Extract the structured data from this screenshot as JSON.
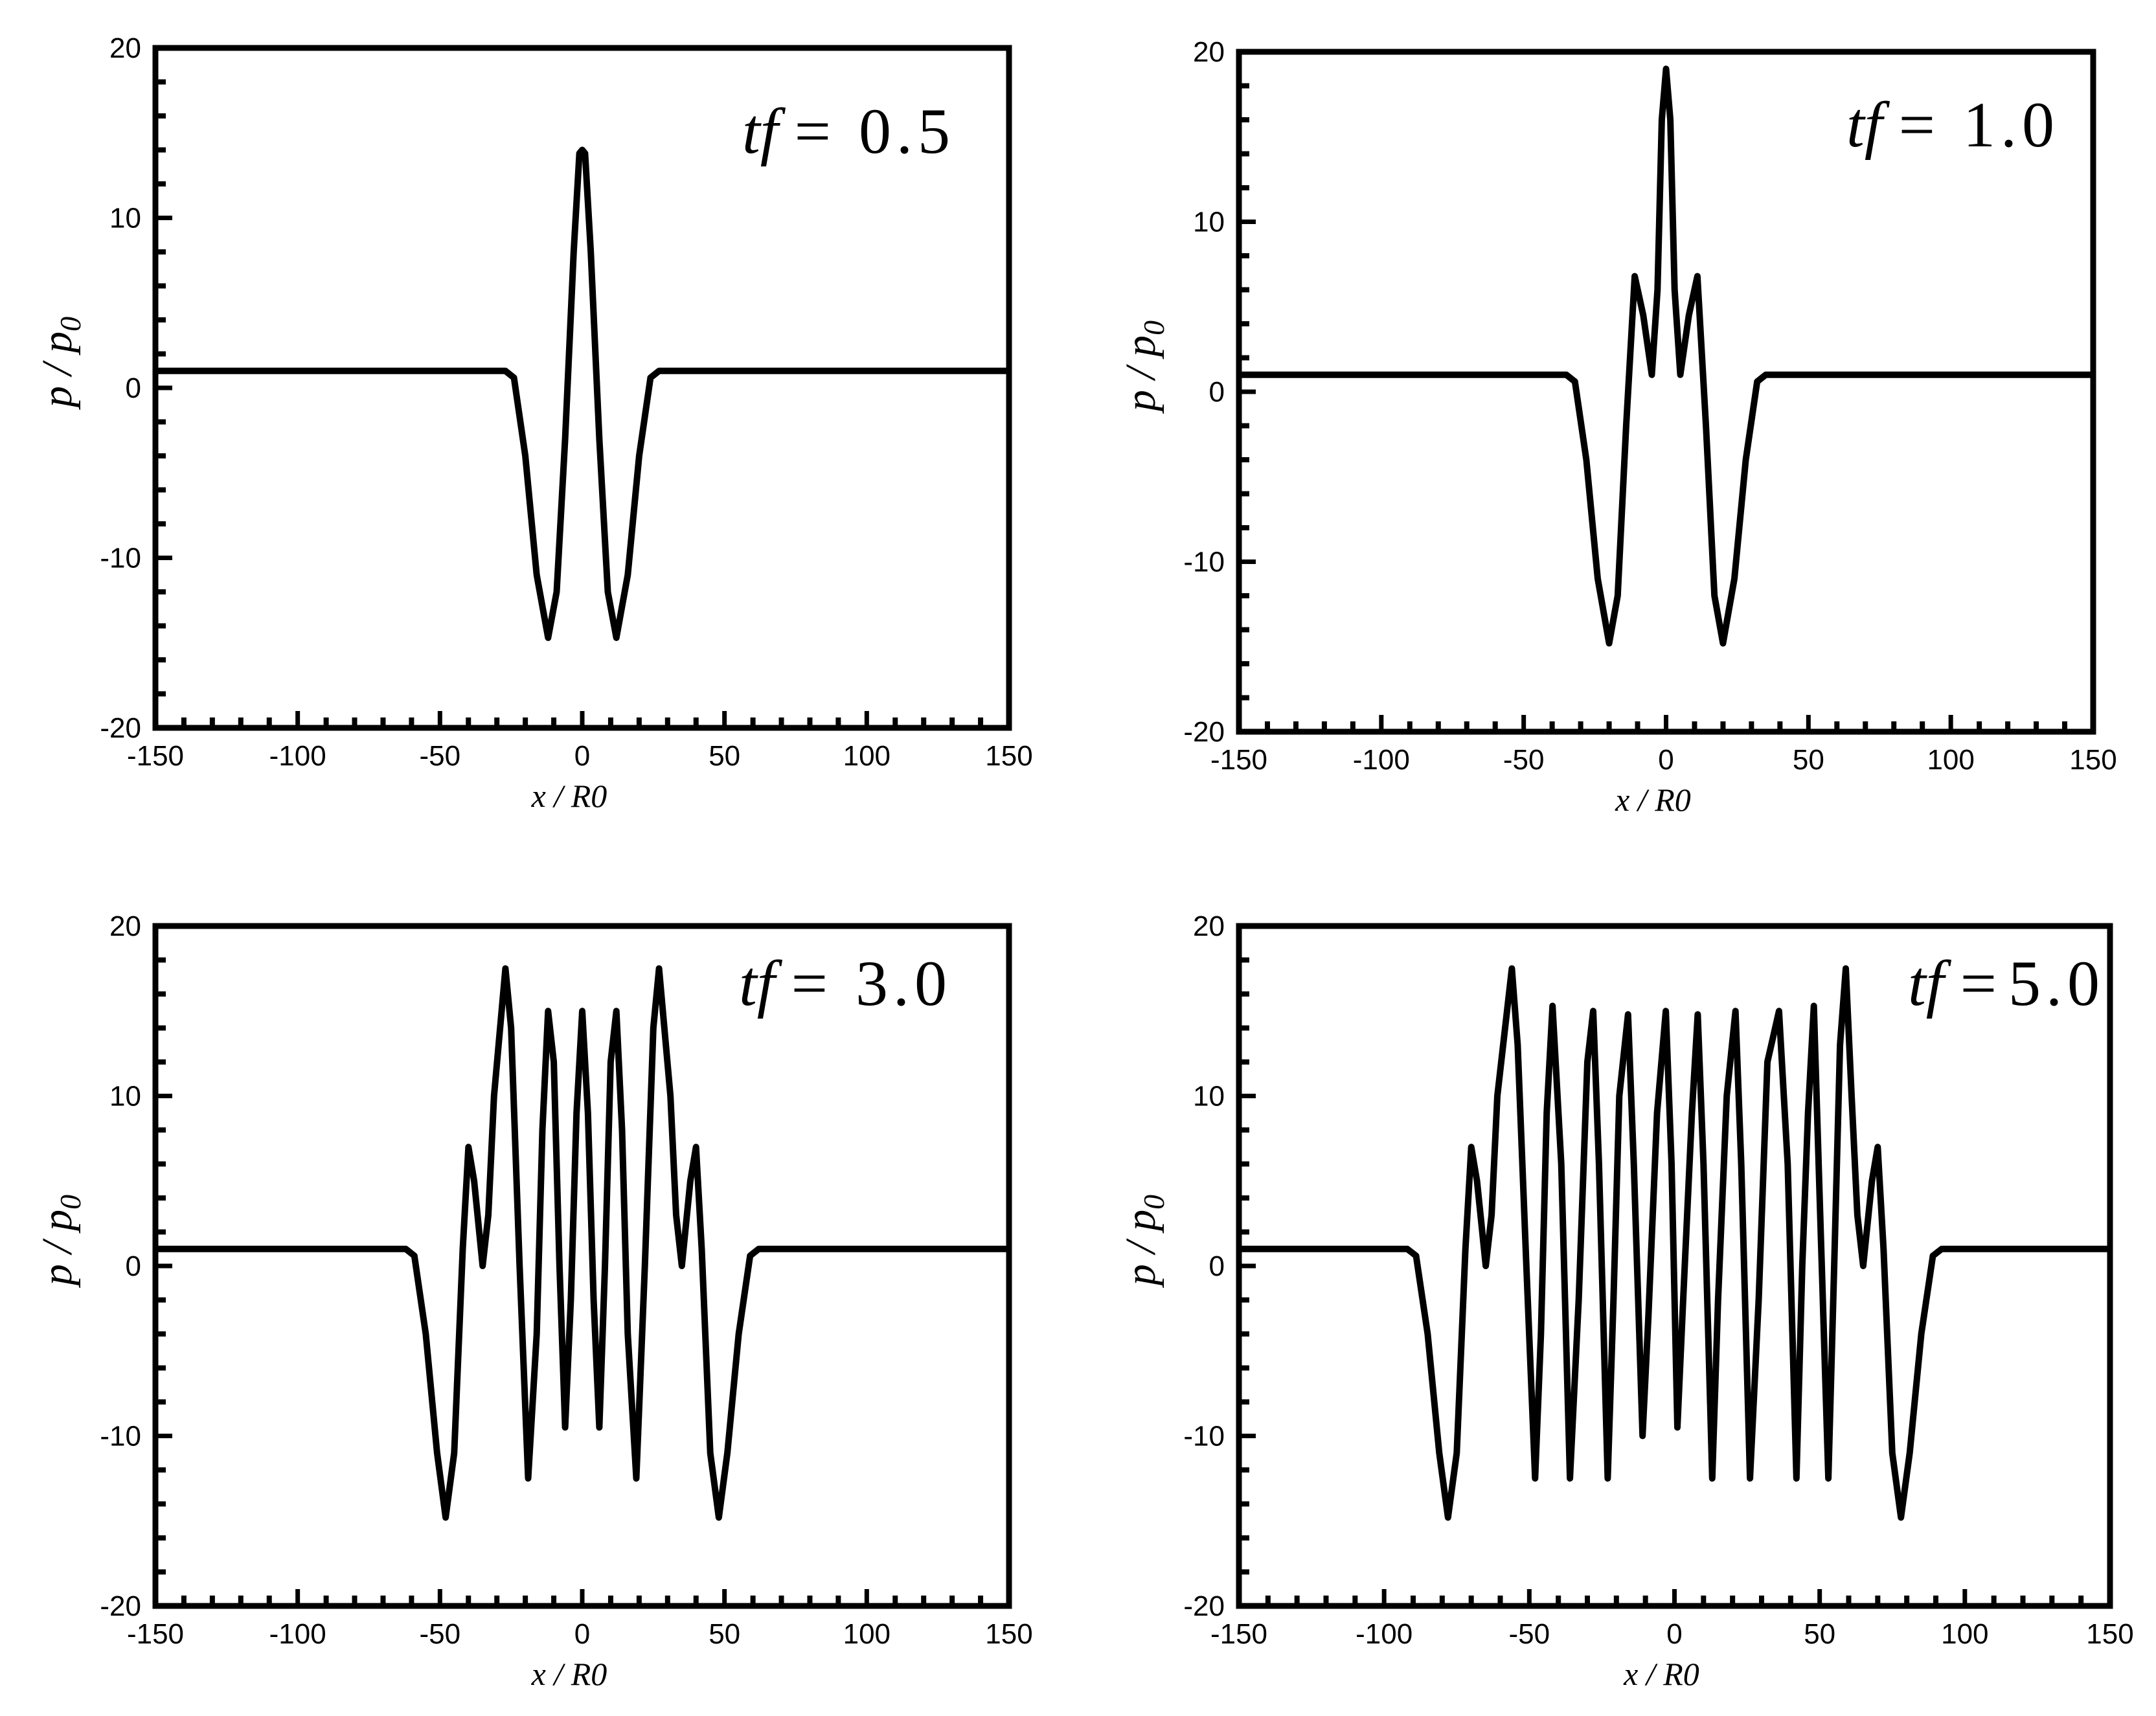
{
  "chart_data": [
    {
      "type": "line",
      "annotation": {
        "prefix": "tf",
        "eq": " = ",
        "value": "0.5"
      },
      "xlabel": "x / R0",
      "ylabel": {
        "main": "p / p",
        "sub": "0"
      },
      "xlim": [
        -150,
        150
      ],
      "ylim": [
        -20,
        20
      ],
      "x_ticks": [
        "-150",
        "-100",
        "-50",
        "0",
        "50",
        "100",
        "150"
      ],
      "y_ticks": [
        "20",
        "10",
        "0",
        "-10",
        "-20"
      ],
      "grid": false,
      "series": [
        {
          "color": "#000000",
          "baseline": 1,
          "points": [
            [
              -150,
              1
            ],
            [
              -27,
              1
            ],
            [
              -24,
              0.6
            ],
            [
              -20,
              -4
            ],
            [
              -16,
              -11
            ],
            [
              -12,
              -14.7
            ],
            [
              -9,
              -12
            ],
            [
              -6,
              -3
            ],
            [
              -3,
              8
            ],
            [
              -1,
              13.8
            ],
            [
              0,
              14
            ],
            [
              1,
              13.8
            ],
            [
              3,
              8
            ],
            [
              6,
              -3
            ],
            [
              9,
              -12
            ],
            [
              12,
              -14.7
            ],
            [
              16,
              -11
            ],
            [
              20,
              -4
            ],
            [
              24,
              0.6
            ],
            [
              27,
              1
            ],
            [
              150,
              1
            ]
          ]
        }
      ]
    },
    {
      "type": "line",
      "annotation": {
        "prefix": "tf",
        "eq": " = ",
        "value": "1.0"
      },
      "xlabel": "x / R0",
      "ylabel": {
        "main": "p / p",
        "sub": "0"
      },
      "xlim": [
        -150,
        150
      ],
      "ylim": [
        -20,
        20
      ],
      "x_ticks": [
        "-150",
        "-100",
        "-50",
        "0",
        "50",
        "100",
        "150"
      ],
      "y_ticks": [
        "20",
        "10",
        "0",
        "-10",
        "-20"
      ],
      "grid": false,
      "series": [
        {
          "color": "#000000",
          "baseline": 1,
          "points": [
            [
              -150,
              1
            ],
            [
              -35,
              1
            ],
            [
              -32,
              0.6
            ],
            [
              -28,
              -4
            ],
            [
              -24,
              -11
            ],
            [
              -20,
              -14.8
            ],
            [
              -17,
              -12
            ],
            [
              -14,
              -2
            ],
            [
              -11,
              6.8
            ],
            [
              -8,
              4.5
            ],
            [
              -5,
              1
            ],
            [
              -3,
              6
            ],
            [
              -1.5,
              16
            ],
            [
              0,
              19
            ],
            [
              1.5,
              16
            ],
            [
              3,
              6
            ],
            [
              5,
              1
            ],
            [
              8,
              4.5
            ],
            [
              11,
              6.8
            ],
            [
              14,
              -2
            ],
            [
              17,
              -12
            ],
            [
              20,
              -14.8
            ],
            [
              24,
              -11
            ],
            [
              28,
              -4
            ],
            [
              32,
              0.6
            ],
            [
              35,
              1
            ],
            [
              150,
              1
            ]
          ]
        }
      ]
    },
    {
      "type": "line",
      "annotation": {
        "prefix": "tf",
        "eq": " = ",
        "value": "3.0"
      },
      "xlabel": "x / R0",
      "ylabel": {
        "main": "p / p",
        "sub": "0"
      },
      "xlim": [
        -150,
        150
      ],
      "ylim": [
        -20,
        20
      ],
      "x_ticks": [
        "-150",
        "-100",
        "-50",
        "0",
        "50",
        "100",
        "150"
      ],
      "y_ticks": [
        "20",
        "10",
        "0",
        "-10",
        "-20"
      ],
      "grid": false,
      "series": [
        {
          "color": "#000000",
          "baseline": 1,
          "points": [
            [
              -150,
              1
            ],
            [
              -62,
              1
            ],
            [
              -59,
              0.6
            ],
            [
              -55,
              -4
            ],
            [
              -51,
              -11
            ],
            [
              -48,
              -14.8
            ],
            [
              -45,
              -11
            ],
            [
              -42,
              1
            ],
            [
              -40,
              7
            ],
            [
              -38,
              5
            ],
            [
              -35,
              0
            ],
            [
              -33,
              3
            ],
            [
              -31,
              10
            ],
            [
              -27,
              17.5
            ],
            [
              -25,
              14
            ],
            [
              -22,
              0
            ],
            [
              -19,
              -12.5
            ],
            [
              -16,
              -4
            ],
            [
              -14,
              8
            ],
            [
              -12,
              15
            ],
            [
              -10,
              12
            ],
            [
              -8,
              0
            ],
            [
              -6,
              -9.5
            ],
            [
              -4,
              -2
            ],
            [
              -2,
              9
            ],
            [
              0,
              15
            ],
            [
              2,
              9
            ],
            [
              4,
              -2
            ],
            [
              6,
              -9.5
            ],
            [
              8,
              0
            ],
            [
              10,
              12
            ],
            [
              12,
              15
            ],
            [
              14,
              8
            ],
            [
              16,
              -4
            ],
            [
              19,
              -12.5
            ],
            [
              22,
              0
            ],
            [
              25,
              14
            ],
            [
              27,
              17.5
            ],
            [
              31,
              10
            ],
            [
              33,
              3
            ],
            [
              35,
              0
            ],
            [
              38,
              5
            ],
            [
              40,
              7
            ],
            [
              42,
              1
            ],
            [
              45,
              -11
            ],
            [
              48,
              -14.8
            ],
            [
              51,
              -11
            ],
            [
              55,
              -4
            ],
            [
              59,
              0.6
            ],
            [
              62,
              1
            ],
            [
              150,
              1
            ]
          ]
        }
      ]
    },
    {
      "type": "line",
      "annotation": {
        "prefix": "tf",
        "eq": " =",
        "value": "5.0"
      },
      "xlabel": "x / R0",
      "ylabel": {
        "main": "p / p",
        "sub": "0"
      },
      "xlim": [
        -150,
        150
      ],
      "ylim": [
        -20,
        20
      ],
      "x_ticks": [
        "-150",
        "-100",
        "-50",
        "0",
        "50",
        "100",
        "150"
      ],
      "y_ticks": [
        "20",
        "10",
        "0",
        "-10",
        "-20"
      ],
      "grid": false,
      "series": [
        {
          "color": "#000000",
          "baseline": 1,
          "points": [
            [
              -150,
              1
            ],
            [
              -92,
              1
            ],
            [
              -89,
              0.6
            ],
            [
              -85,
              -4
            ],
            [
              -81,
              -11
            ],
            [
              -78,
              -14.8
            ],
            [
              -75,
              -11
            ],
            [
              -72,
              1
            ],
            [
              -70,
              7
            ],
            [
              -68,
              5
            ],
            [
              -65,
              0
            ],
            [
              -63,
              3
            ],
            [
              -61,
              10
            ],
            [
              -56,
              17.5
            ],
            [
              -54,
              13
            ],
            [
              -51,
              0
            ],
            [
              -48,
              -12.5
            ],
            [
              -46,
              -4
            ],
            [
              -44,
              9
            ],
            [
              -42,
              15.3
            ],
            [
              -39,
              6
            ],
            [
              -36,
              -12.5
            ],
            [
              -33,
              -2
            ],
            [
              -30,
              12
            ],
            [
              -28,
              15
            ],
            [
              -26,
              6
            ],
            [
              -23,
              -12.5
            ],
            [
              -21,
              -2
            ],
            [
              -19,
              10
            ],
            [
              -16,
              14.8
            ],
            [
              -14,
              6
            ],
            [
              -11,
              -10
            ],
            [
              -9,
              -3
            ],
            [
              -6,
              9
            ],
            [
              -3,
              15
            ],
            [
              -1,
              6
            ],
            [
              1,
              -9.5
            ],
            [
              3,
              -2
            ],
            [
              6,
              9
            ],
            [
              8,
              14.8
            ],
            [
              10,
              6
            ],
            [
              13,
              -12.5
            ],
            [
              15,
              -2
            ],
            [
              18,
              10
            ],
            [
              21,
              15
            ],
            [
              23,
              6
            ],
            [
              26,
              -12.5
            ],
            [
              29,
              -2
            ],
            [
              32,
              12
            ],
            [
              36,
              15
            ],
            [
              39,
              6
            ],
            [
              42,
              -12.5
            ],
            [
              44,
              0
            ],
            [
              46,
              9
            ],
            [
              48,
              15.3
            ],
            [
              50,
              4
            ],
            [
              53,
              -12.5
            ],
            [
              55,
              0
            ],
            [
              57,
              13
            ],
            [
              59,
              17.5
            ],
            [
              61,
              10
            ],
            [
              63,
              3
            ],
            [
              65,
              0
            ],
            [
              68,
              5
            ],
            [
              70,
              7
            ],
            [
              72,
              1
            ],
            [
              75,
              -11
            ],
            [
              78,
              -14.8
            ],
            [
              81,
              -11
            ],
            [
              85,
              -4
            ],
            [
              89,
              0.6
            ],
            [
              92,
              1
            ],
            [
              150,
              1
            ]
          ]
        }
      ]
    }
  ]
}
